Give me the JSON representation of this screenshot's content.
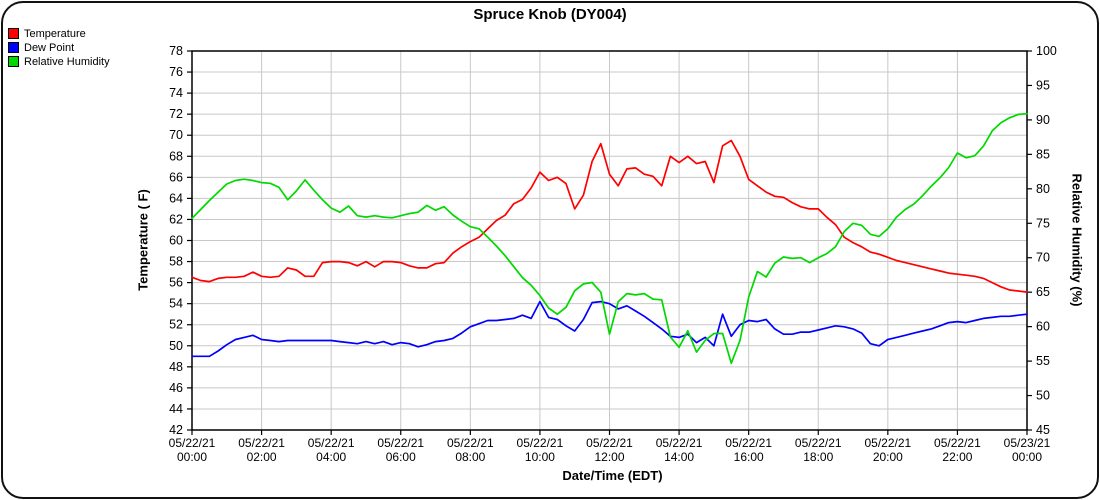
{
  "title": "Spruce Knob (DY004)",
  "legend": [
    {
      "label": "Temperature",
      "color": "#ff0000"
    },
    {
      "label": "Dew Point",
      "color": "#0000ff"
    },
    {
      "label": "Relative Humidity",
      "color": "#00d900"
    }
  ],
  "axes": {
    "left": {
      "title": "Temperature ( F)"
    },
    "right": {
      "title": "Relative Humidity (%)"
    },
    "x": {
      "title": "Date/Time (EDT)"
    }
  },
  "chart_data": {
    "type": "line",
    "title": "Spruce Knob (DY004)",
    "x_unit": "hours since 05/22/21 00:00 EDT",
    "x_start": 0,
    "x_step": 0.25,
    "x_range": [
      0,
      24
    ],
    "x_tick_every_hours": 2,
    "x_tick_labels": [
      {
        "date": "05/22/21",
        "time": "00:00"
      },
      {
        "date": "05/22/21",
        "time": "02:00"
      },
      {
        "date": "05/22/21",
        "time": "04:00"
      },
      {
        "date": "05/22/21",
        "time": "06:00"
      },
      {
        "date": "05/22/21",
        "time": "08:00"
      },
      {
        "date": "05/22/21",
        "time": "10:00"
      },
      {
        "date": "05/22/21",
        "time": "12:00"
      },
      {
        "date": "05/22/21",
        "time": "14:00"
      },
      {
        "date": "05/22/21",
        "time": "16:00"
      },
      {
        "date": "05/22/21",
        "time": "18:00"
      },
      {
        "date": "05/22/21",
        "time": "20:00"
      },
      {
        "date": "05/22/21",
        "time": "22:00"
      },
      {
        "date": "05/23/21",
        "time": "00:00"
      }
    ],
    "y_left": {
      "label": "Temperature ( F)",
      "min": 42,
      "max": 78,
      "tick_step": 2
    },
    "y_right": {
      "label": "Relative Humidity (%)",
      "min": 45,
      "max": 100,
      "tick_step": 5
    },
    "grid": true,
    "legend_position": "top-left",
    "series": [
      {
        "name": "Temperature",
        "axis": "left",
        "color": "#ff0000",
        "values": [
          56.5,
          56.2,
          56.1,
          56.4,
          56.5,
          56.5,
          56.6,
          57.0,
          56.6,
          56.5,
          56.6,
          57.4,
          57.2,
          56.6,
          56.6,
          57.9,
          58.0,
          58.0,
          57.9,
          57.6,
          58.0,
          57.5,
          58.0,
          58.0,
          57.9,
          57.6,
          57.4,
          57.4,
          57.8,
          57.9,
          58.8,
          59.4,
          59.9,
          60.3,
          61.1,
          61.9,
          62.4,
          63.5,
          63.9,
          65.0,
          66.5,
          65.7,
          66.0,
          65.4,
          63.0,
          64.3,
          67.5,
          69.2,
          66.3,
          65.2,
          66.8,
          66.9,
          66.3,
          66.1,
          65.2,
          68.0,
          67.4,
          68.0,
          67.3,
          67.5,
          65.5,
          69.0,
          69.5,
          68.0,
          65.8,
          65.2,
          64.6,
          64.2,
          64.1,
          63.6,
          63.2,
          63.0,
          63.0,
          62.2,
          61.5,
          60.3,
          59.8,
          59.4,
          58.9,
          58.7,
          58.4,
          58.1,
          57.9,
          57.7,
          57.5,
          57.3,
          57.1,
          56.9,
          56.8,
          56.7,
          56.6,
          56.4,
          56.0,
          55.6,
          55.3,
          55.2,
          55.1
        ]
      },
      {
        "name": "Dew Point",
        "axis": "left",
        "color": "#0000ff",
        "values": [
          49.0,
          49.0,
          49.0,
          49.5,
          50.1,
          50.6,
          50.8,
          51.0,
          50.6,
          50.5,
          50.4,
          50.5,
          50.5,
          50.5,
          50.5,
          50.5,
          50.5,
          50.4,
          50.3,
          50.2,
          50.4,
          50.2,
          50.4,
          50.1,
          50.3,
          50.2,
          49.9,
          50.1,
          50.4,
          50.5,
          50.7,
          51.2,
          51.8,
          52.1,
          52.4,
          52.4,
          52.5,
          52.6,
          52.9,
          52.6,
          54.2,
          52.7,
          52.5,
          51.9,
          51.4,
          52.5,
          54.1,
          54.2,
          54.0,
          53.5,
          53.8,
          53.3,
          52.8,
          52.2,
          51.6,
          50.9,
          50.8,
          51.1,
          50.3,
          50.8,
          50.0,
          53.0,
          50.9,
          52.0,
          52.4,
          52.3,
          52.5,
          51.6,
          51.1,
          51.1,
          51.3,
          51.3,
          51.5,
          51.7,
          51.9,
          51.8,
          51.6,
          51.2,
          50.2,
          50.0,
          50.6,
          50.8,
          51.0,
          51.2,
          51.4,
          51.6,
          51.9,
          52.2,
          52.3,
          52.2,
          52.4,
          52.6,
          52.7,
          52.8,
          52.8,
          52.9,
          53.0
        ]
      },
      {
        "name": "Relative Humidity",
        "axis": "right",
        "color": "#00d900",
        "values": [
          75.7,
          77.0,
          78.3,
          79.5,
          80.7,
          81.2,
          81.4,
          81.2,
          80.9,
          80.8,
          80.2,
          78.4,
          79.7,
          81.3,
          79.8,
          78.4,
          77.2,
          76.6,
          77.5,
          76.1,
          75.9,
          76.1,
          75.9,
          75.8,
          76.1,
          76.4,
          76.6,
          77.6,
          76.9,
          77.4,
          76.2,
          75.3,
          74.5,
          74.2,
          73.0,
          71.7,
          70.3,
          68.7,
          67.1,
          66.0,
          64.5,
          62.7,
          61.8,
          62.8,
          65.2,
          66.2,
          66.4,
          65.0,
          58.9,
          63.6,
          64.8,
          64.6,
          64.8,
          64.0,
          63.9,
          58.5,
          57.0,
          59.4,
          56.3,
          58.0,
          59.0,
          59.0,
          54.7,
          58.0,
          64.3,
          68.0,
          67.2,
          69.2,
          70.1,
          69.9,
          70.0,
          69.3,
          70.0,
          70.6,
          71.6,
          73.8,
          75.0,
          74.7,
          73.4,
          73.1,
          74.2,
          75.9,
          77.0,
          77.8,
          79.0,
          80.4,
          81.6,
          83.1,
          85.2,
          84.5,
          84.8,
          86.2,
          88.4,
          89.6,
          90.3,
          90.8,
          90.9
        ]
      }
    ]
  },
  "style": {
    "grid_color": "#c8c8c8",
    "axis_color": "#000000",
    "background": "#ffffff"
  }
}
